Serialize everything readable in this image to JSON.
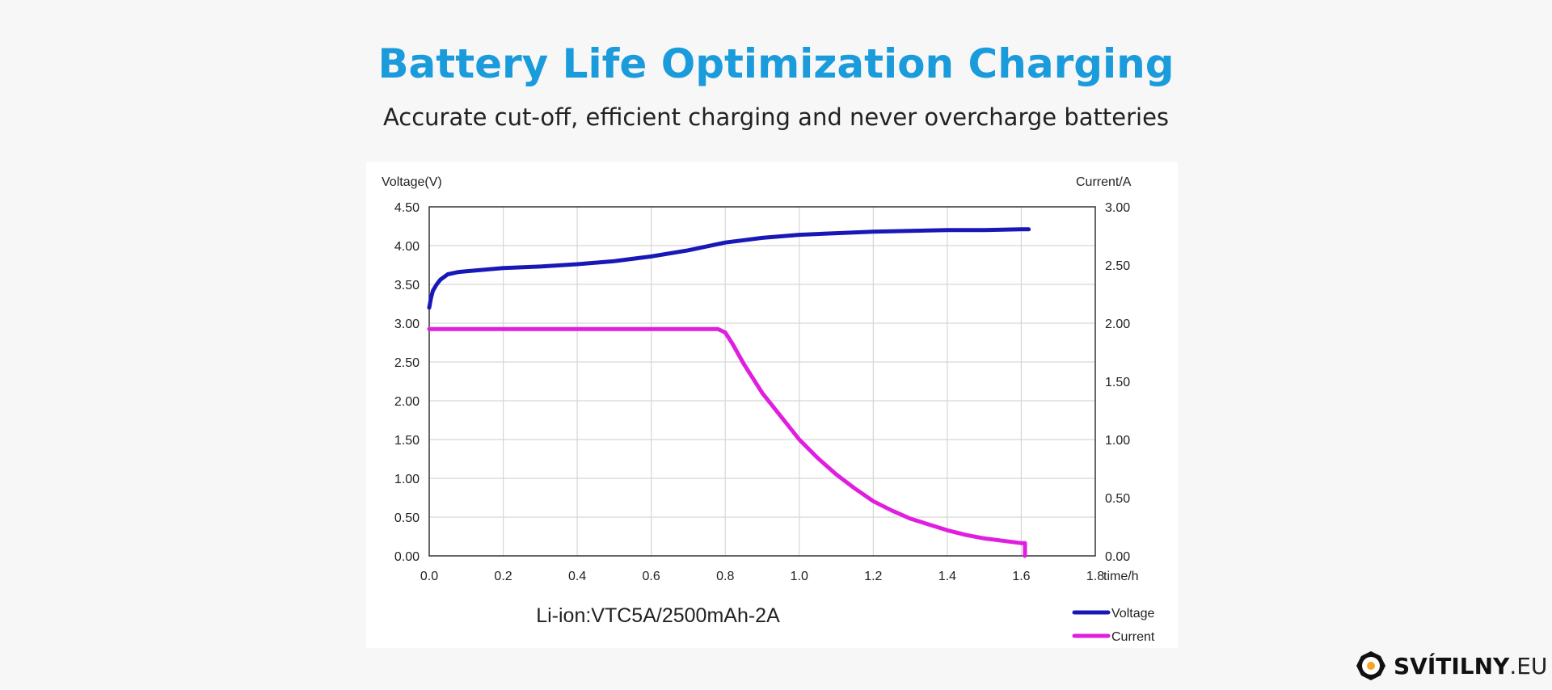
{
  "header": {
    "title": "Battery Life Optimization Charging",
    "subtitle": "Accurate cut-off, efficient charging and never overcharge batteries"
  },
  "brand": {
    "name_strong": "SVÍTILNY",
    "name_light": ".EU",
    "accent": "#f5a623"
  },
  "colors": {
    "title": "#1a9bdb",
    "voltage": "#1818b8",
    "current": "#e01ee0",
    "grid": "#d6d6d6",
    "axis": "#333333"
  },
  "chart_data": {
    "type": "line",
    "title": "Li-ion:VTC5A/2500mAh-2A",
    "xlabel": "time/h",
    "ylabel": "Voltage(V)",
    "y2label": "Current/A",
    "xlim": [
      0,
      1.8
    ],
    "ylim": [
      0,
      4.5
    ],
    "y2lim": [
      0,
      3.0
    ],
    "x_ticks": [
      "0.0",
      "0.2",
      "0.4",
      "0.6",
      "0.8",
      "1.0",
      "1.2",
      "1.4",
      "1.6",
      "1.8"
    ],
    "y_ticks": [
      "0.00",
      "0.50",
      "1.00",
      "1.50",
      "2.00",
      "2.50",
      "3.00",
      "3.50",
      "4.00",
      "4.50"
    ],
    "y2_ticks": [
      "0.00",
      "0.50",
      "1.00",
      "1.50",
      "2.00",
      "2.50",
      "3.00"
    ],
    "grid": true,
    "legend_position": "bottom-right",
    "series": [
      {
        "name": "Voltage",
        "axis": "left",
        "x": [
          0,
          0.005,
          0.01,
          0.02,
          0.03,
          0.05,
          0.08,
          0.1,
          0.15,
          0.2,
          0.3,
          0.4,
          0.5,
          0.6,
          0.7,
          0.8,
          0.9,
          1.0,
          1.1,
          1.2,
          1.3,
          1.4,
          1.5,
          1.6,
          1.62
        ],
        "values": [
          3.2,
          3.33,
          3.42,
          3.5,
          3.56,
          3.63,
          3.66,
          3.67,
          3.69,
          3.71,
          3.73,
          3.76,
          3.8,
          3.86,
          3.94,
          4.04,
          4.1,
          4.14,
          4.16,
          4.18,
          4.19,
          4.2,
          4.2,
          4.21,
          4.21
        ]
      },
      {
        "name": "Current",
        "axis": "right",
        "x": [
          0,
          0.1,
          0.2,
          0.3,
          0.4,
          0.5,
          0.6,
          0.7,
          0.78,
          0.8,
          0.82,
          0.85,
          0.9,
          0.95,
          1.0,
          1.05,
          1.1,
          1.15,
          1.2,
          1.25,
          1.3,
          1.35,
          1.4,
          1.45,
          1.5,
          1.55,
          1.6,
          1.61,
          1.61
        ],
        "values": [
          1.95,
          1.95,
          1.95,
          1.95,
          1.95,
          1.95,
          1.95,
          1.95,
          1.95,
          1.92,
          1.82,
          1.65,
          1.4,
          1.2,
          1.0,
          0.84,
          0.7,
          0.58,
          0.47,
          0.39,
          0.32,
          0.27,
          0.22,
          0.18,
          0.15,
          0.13,
          0.11,
          0.11,
          0.0
        ]
      }
    ]
  }
}
